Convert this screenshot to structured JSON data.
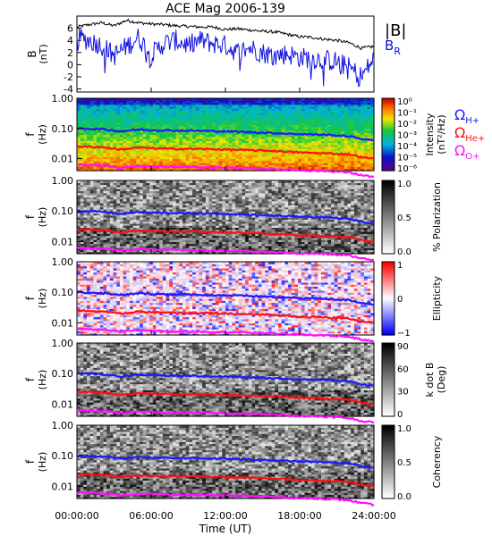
{
  "chart_data": {
    "type": "multi-panel time series and spectrograms",
    "title": "ACE Mag 2006-139",
    "x_ticks": [
      "00:00:00",
      "06:00:00",
      "12:00:00",
      "18:00:00",
      "24:00:00"
    ],
    "xlabel": "Time (UT)",
    "xlim_hours": [
      0,
      24
    ],
    "panels": [
      {
        "type": "line",
        "ylabel": "B",
        "yunit": "(nT)",
        "ylim": [
          -4.5,
          8
        ],
        "y_ticks": [
          "6",
          "4",
          "2",
          "0",
          "-2",
          "-4"
        ],
        "legend": [
          "|B|",
          "B"
        ],
        "legend_subscript": [
          "",
          "R"
        ],
        "series": [
          {
            "name": "|B|",
            "color": "#000000",
            "x": [
              0,
              1,
              2,
              3,
              4,
              5,
              6,
              7,
              8,
              9,
              10,
              11,
              12,
              13,
              14,
              15,
              16,
              17,
              18,
              19,
              20,
              21,
              22,
              23,
              24
            ],
            "y": [
              6.2,
              6.6,
              6.9,
              6.4,
              7.3,
              6.9,
              6.7,
              6.6,
              6.4,
              6.3,
              6.2,
              6.2,
              5.8,
              5.9,
              5.7,
              5.5,
              5.4,
              5.0,
              4.6,
              4.5,
              4.2,
              4.0,
              3.6,
              2.7,
              3.0
            ]
          },
          {
            "name": "B",
            "color": "#1010e0",
            "x": [
              0,
              1,
              2,
              3,
              4,
              5,
              6,
              7,
              8,
              9,
              10,
              11,
              12,
              13,
              14,
              15,
              16,
              17,
              18,
              19,
              20,
              21,
              22,
              23,
              24
            ],
            "y": [
              4.5,
              4.0,
              3.2,
              1.5,
              3.0,
              4.5,
              1.5,
              3.5,
              4.0,
              3.2,
              4.0,
              3.5,
              3.2,
              2.0,
              2.8,
              2.0,
              1.5,
              1.8,
              1.2,
              1.0,
              0.8,
              0.5,
              -0.5,
              -2.0,
              1.0
            ]
          }
        ]
      },
      {
        "type": "heatmap",
        "ylabel": "f",
        "yunit": "(Hz)",
        "y_ticks": [
          "1.00",
          "0.10",
          "0.01"
        ],
        "ylim_log": [
          0.004,
          1.0
        ],
        "colorbar_label": "Intensity",
        "colorbar_unit": "(nT²/Hz)",
        "colorbar_ticks": [
          "10⁰",
          "10⁻¹",
          "10⁻²",
          "10⁻³",
          "10⁻⁴",
          "10⁻⁵",
          "10⁻⁶"
        ],
        "colorbar_scale": "rainbow",
        "legend": [
          "Ω",
          "Ω",
          "Ω"
        ],
        "legend_subscript": [
          "H+",
          "He+",
          "O+"
        ]
      },
      {
        "type": "heatmap",
        "ylabel": "f",
        "yunit": "(Hz)",
        "y_ticks": [
          "1.00",
          "0.10",
          "0.01"
        ],
        "ylim_log": [
          0.004,
          1.0
        ],
        "colorbar_label": "% Polarization",
        "colorbar_ticks": [
          "1.0",
          "0.5",
          "0.0"
        ],
        "colorbar_scale": "gray"
      },
      {
        "type": "heatmap",
        "ylabel": "f",
        "yunit": "(Hz)",
        "y_ticks": [
          "1.00",
          "0.10",
          "0.01"
        ],
        "ylim_log": [
          0.004,
          1.0
        ],
        "colorbar_label": "Ellipticity",
        "colorbar_ticks": [
          "1",
          "0",
          "−1"
        ],
        "colorbar_scale": "blue-white-red"
      },
      {
        "type": "heatmap",
        "ylabel": "f",
        "yunit": "(Hz)",
        "y_ticks": [
          "1.00",
          "0.10",
          "0.01"
        ],
        "ylim_log": [
          0.004,
          1.0
        ],
        "colorbar_label": "k dot B",
        "colorbar_unit": "(Deg)",
        "colorbar_ticks": [
          "90",
          "60",
          "30",
          "0"
        ],
        "colorbar_scale": "gray"
      },
      {
        "type": "heatmap",
        "ylabel": "f",
        "yunit": "(Hz)",
        "y_ticks": [
          "1.00",
          "0.10",
          "0.01"
        ],
        "ylim_log": [
          0.004,
          1.0
        ],
        "colorbar_label": "Coherency",
        "colorbar_ticks": [
          "1.0",
          "0.5",
          "0.0"
        ],
        "colorbar_scale": "gray"
      }
    ],
    "gyrofrequency_lines": [
      {
        "name": "H+",
        "color": "#1a1aff",
        "x": [
          0,
          2,
          3.5,
          5,
          6,
          8,
          10,
          12,
          14,
          16,
          18,
          20,
          22,
          23,
          24
        ],
        "y": [
          0.1,
          0.095,
          0.08,
          0.092,
          0.088,
          0.085,
          0.083,
          0.08,
          0.075,
          0.07,
          0.065,
          0.062,
          0.055,
          0.045,
          0.04
        ]
      },
      {
        "name": "He+",
        "color": "#ff1010",
        "x": [
          0,
          2,
          3.5,
          5,
          6,
          8,
          10,
          12,
          14,
          16,
          18,
          20,
          22,
          23,
          24
        ],
        "y": [
          0.025,
          0.024,
          0.02,
          0.023,
          0.022,
          0.021,
          0.021,
          0.02,
          0.019,
          0.018,
          0.016,
          0.015,
          0.014,
          0.011,
          0.01
        ]
      },
      {
        "name": "O+",
        "color": "#ff10ff",
        "x": [
          0,
          2,
          3.5,
          5,
          6,
          8,
          10,
          12,
          14,
          16,
          18,
          20,
          22,
          23,
          24
        ],
        "y": [
          0.0063,
          0.006,
          0.005,
          0.0058,
          0.0055,
          0.0053,
          0.0052,
          0.005,
          0.0048,
          0.0045,
          0.0041,
          0.0039,
          0.0035,
          0.0028,
          0.0025
        ]
      }
    ]
  }
}
